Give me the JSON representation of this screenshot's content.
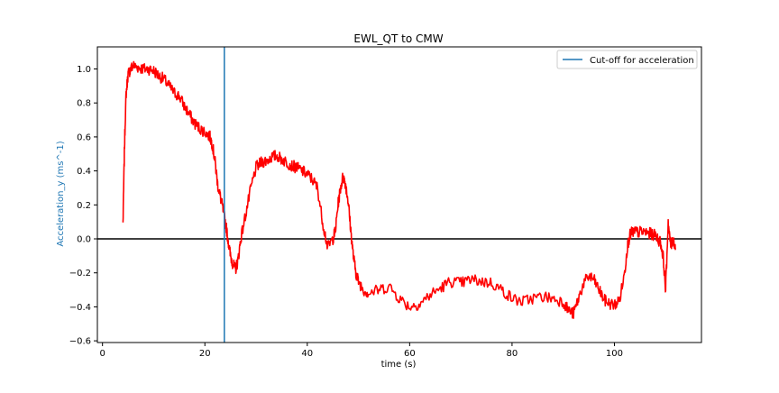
{
  "chart_data": {
    "type": "line",
    "title": "EWL_QT to CMW",
    "xlabel": "time (s)",
    "ylabel": "Acceleration_y (ms^-1)",
    "xlim": [
      -1.0,
      117.0
    ],
    "ylim": [
      -0.61,
      1.13
    ],
    "xticks": [
      0,
      20,
      40,
      60,
      80,
      100
    ],
    "yticks": [
      -0.6,
      -0.4,
      -0.2,
      0.0,
      0.2,
      0.4,
      0.6,
      0.8,
      1.0
    ],
    "ytick_labels": [
      "−0.6",
      "−0.4",
      "−0.2",
      "0.0",
      "0.2",
      "0.4",
      "0.6",
      "0.8",
      "1.0"
    ],
    "grid": false,
    "legend": {
      "placement": "top-right",
      "entries": [
        {
          "label": "Cut-off for acceleration",
          "color": "#1f77b4"
        }
      ]
    },
    "cutoff_x": 23.8,
    "zero_line_y": 0.0,
    "colors": {
      "signal": "#ff0000",
      "cutoff": "#1f77b4",
      "zero_line": "#000000",
      "ylabel": "#1f77b4"
    },
    "series": [
      {
        "x": [
          4.0,
          4.3,
          4.6,
          5.0,
          5.5,
          6.0,
          7.0,
          8.0,
          9.0,
          10.0,
          11.0,
          12.0,
          13.0,
          14.0,
          15.0,
          16.0,
          17.0,
          18.0,
          19.0,
          20.0,
          21.0,
          21.5,
          22.0,
          22.5,
          23.0,
          23.5,
          24.0,
          24.5,
          25.0,
          25.5,
          26.0,
          26.5,
          27.0,
          28.0,
          29.0,
          30.0,
          31.0,
          32.0,
          33.0,
          34.0,
          35.0,
          36.0,
          37.0,
          38.0,
          39.0,
          40.0,
          41.0,
          42.0,
          43.0,
          44.0,
          45.0,
          45.5,
          46.0,
          46.5,
          47.0,
          47.5,
          48.0,
          48.5,
          49.0,
          49.5,
          50.0,
          51.0,
          52.0,
          54.0,
          56.0,
          58.0,
          60.0,
          62.0,
          64.0,
          66.0,
          68.0,
          70.0,
          72.0,
          74.0,
          76.0,
          78.0,
          80.0,
          82.0,
          84.0,
          86.0,
          88.0,
          90.0,
          91.0,
          92.0,
          93.0,
          94.0,
          95.0,
          96.0,
          97.0,
          98.0,
          99.0,
          100.0,
          101.0,
          102.0,
          102.5,
          103.0,
          103.5,
          104.0,
          105.0,
          106.0,
          107.0,
          108.0,
          109.0,
          109.5,
          110.0,
          110.5,
          111.0,
          111.5,
          112.0
        ],
        "values": [
          0.09,
          0.55,
          0.85,
          0.97,
          1.0,
          1.02,
          1.01,
          1.0,
          1.0,
          0.99,
          0.96,
          0.94,
          0.9,
          0.86,
          0.84,
          0.78,
          0.73,
          0.68,
          0.65,
          0.63,
          0.6,
          0.55,
          0.45,
          0.32,
          0.25,
          0.18,
          0.1,
          0.0,
          -0.1,
          -0.15,
          -0.18,
          -0.12,
          0.0,
          0.15,
          0.3,
          0.42,
          0.45,
          0.46,
          0.48,
          0.49,
          0.47,
          0.45,
          0.43,
          0.42,
          0.4,
          0.38,
          0.35,
          0.3,
          0.1,
          -0.05,
          0.0,
          0.05,
          0.2,
          0.3,
          0.37,
          0.32,
          0.22,
          0.05,
          -0.1,
          -0.2,
          -0.25,
          -0.3,
          -0.32,
          -0.3,
          -0.28,
          -0.35,
          -0.4,
          -0.38,
          -0.33,
          -0.29,
          -0.25,
          -0.26,
          -0.24,
          -0.25,
          -0.26,
          -0.3,
          -0.35,
          -0.37,
          -0.35,
          -0.34,
          -0.35,
          -0.37,
          -0.42,
          -0.44,
          -0.35,
          -0.26,
          -0.22,
          -0.24,
          -0.3,
          -0.36,
          -0.38,
          -0.39,
          -0.36,
          -0.2,
          -0.05,
          0.02,
          0.04,
          0.04,
          0.04,
          0.04,
          0.03,
          0.02,
          -0.02,
          -0.1,
          -0.3,
          0.1,
          -0.05,
          0.0,
          -0.06
        ]
      }
    ]
  }
}
